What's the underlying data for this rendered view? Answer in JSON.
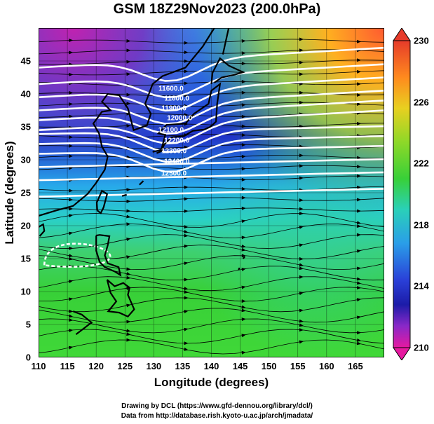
{
  "title": "GSM 18Z29Nov2023 (200.0hPa)",
  "axes": {
    "xlabel": "Longitude (degrees)",
    "ylabel": "Latitude  (degrees)",
    "x_ticks": [
      "110",
      "115",
      "120",
      "125",
      "130",
      "135",
      "140",
      "145",
      "150",
      "155",
      "160",
      "165"
    ],
    "y_ticks": [
      "0",
      "5",
      "10",
      "15",
      "20",
      "25",
      "30",
      "35",
      "40",
      "45"
    ],
    "x_range": [
      110,
      170
    ],
    "y_range": [
      0,
      50
    ]
  },
  "colorbar": {
    "ticks": [
      "230",
      "226",
      "222",
      "218",
      "214",
      "210"
    ],
    "range": [
      210,
      230
    ],
    "colors": [
      "#e6199f",
      "#2525c8",
      "#2ab6ea",
      "#3ad93a",
      "#d8d020",
      "#e63b2a"
    ]
  },
  "contour_labels": [
    "11600.0",
    "11800.0",
    "11900.0",
    "12000.0",
    "12100.0",
    "12200.0",
    "12300.0",
    "12400.0",
    "12500.0"
  ],
  "credits": {
    "line1": "Drawing by DCL (https://www.gfd-dennou.org/library/dcl/)",
    "line2": "Data from http://database.rish.kyoto-u.ac.jp/arch/jmadata/"
  }
}
